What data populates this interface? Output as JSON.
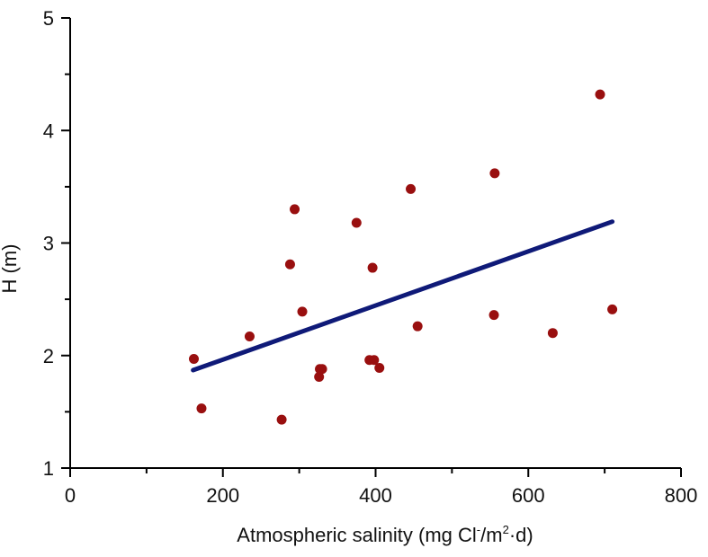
{
  "chart_data": {
    "type": "scatter",
    "title": "",
    "xlabel": "Atmospheric salinity (mg Cl",
    "xlabel_sup1": "-",
    "xlabel_mid": "/m",
    "xlabel_sup2": "2",
    "xlabel_end": "·d)",
    "ylabel": "H (m)",
    "xlim": [
      0,
      800
    ],
    "ylim": [
      1,
      5
    ],
    "x_ticks": [
      0,
      200,
      400,
      600,
      800
    ],
    "y_ticks": [
      1,
      2,
      3,
      4,
      5
    ],
    "x_ticks_labels": [
      "0",
      "200",
      "400",
      "600",
      "800"
    ],
    "y_ticks_labels": [
      "1",
      "2",
      "3",
      "4",
      "5"
    ],
    "grid": false,
    "series": [
      {
        "kind": "points",
        "color": "#990f0f",
        "points": [
          [
            162,
            1.97
          ],
          [
            172,
            1.53
          ],
          [
            235,
            2.17
          ],
          [
            277,
            1.43
          ],
          [
            288,
            2.81
          ],
          [
            294,
            3.3
          ],
          [
            304,
            2.39
          ],
          [
            326,
            1.81
          ],
          [
            327,
            1.88
          ],
          [
            330,
            1.88
          ],
          [
            375,
            3.18
          ],
          [
            392,
            1.96
          ],
          [
            398,
            1.96
          ],
          [
            396,
            2.78
          ],
          [
            405,
            1.89
          ],
          [
            446,
            3.48
          ],
          [
            455,
            2.26
          ],
          [
            555,
            2.36
          ],
          [
            556,
            3.62
          ],
          [
            632,
            2.2
          ],
          [
            694,
            4.32
          ],
          [
            710,
            2.41
          ]
        ]
      },
      {
        "kind": "fit-line",
        "color": "#0f1a78",
        "points": [
          [
            161,
            1.87
          ],
          [
            710,
            3.19
          ]
        ]
      }
    ]
  }
}
